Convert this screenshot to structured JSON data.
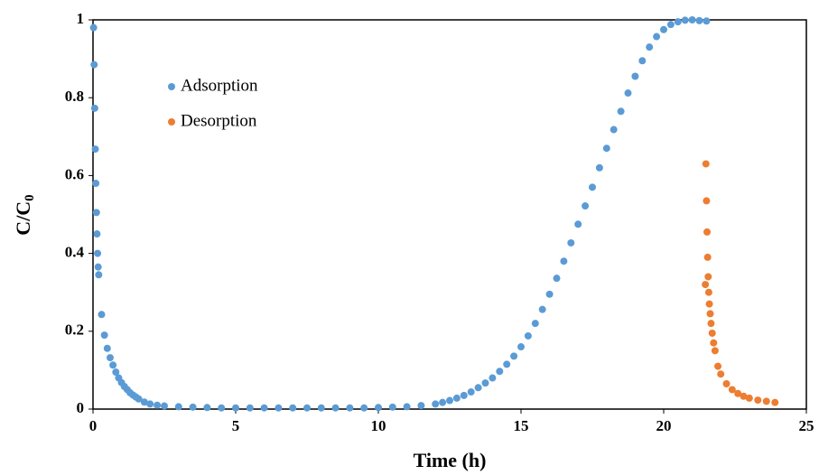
{
  "chart_data": {
    "type": "scatter",
    "x_label": "Time (h)",
    "y_label": "C/C",
    "y_label_sub": "0",
    "xlim": [
      0,
      25
    ],
    "xticks": [
      0,
      5,
      10,
      15,
      20,
      25
    ],
    "ylim": [
      0,
      1
    ],
    "yticks": [
      0,
      0.2,
      0.4,
      0.6,
      0.8,
      1
    ],
    "legend": "upper left",
    "series": [
      {
        "name": "Adsorption",
        "color": "#5b9bd5",
        "x": [
          0.02,
          0.04,
          0.06,
          0.08,
          0.1,
          0.12,
          0.14,
          0.16,
          0.18,
          0.2,
          0.3,
          0.4,
          0.5,
          0.6,
          0.7,
          0.8,
          0.9,
          1.0,
          1.1,
          1.2,
          1.3,
          1.4,
          1.5,
          1.6,
          1.8,
          2.0,
          2.25,
          2.5,
          3,
          3.5,
          4,
          4.5,
          5,
          5.5,
          6,
          6.5,
          7,
          7.5,
          8,
          8.5,
          9,
          9.5,
          10,
          10.5,
          11,
          11.5,
          12,
          12.25,
          12.5,
          12.75,
          13,
          13.25,
          13.5,
          13.75,
          14,
          14.25,
          14.5,
          14.75,
          15,
          15.25,
          15.5,
          15.75,
          16,
          16.25,
          16.5,
          16.75,
          17,
          17.25,
          17.5,
          17.75,
          18,
          18.25,
          18.5,
          18.75,
          19,
          19.25,
          19.5,
          19.75,
          20,
          20.25,
          20.5,
          20.75,
          21,
          21.25,
          21.5
        ],
        "values": [
          0.98,
          0.885,
          0.773,
          0.668,
          0.58,
          0.505,
          0.45,
          0.4,
          0.365,
          0.345,
          0.243,
          0.19,
          0.156,
          0.132,
          0.113,
          0.095,
          0.08,
          0.068,
          0.058,
          0.05,
          0.042,
          0.036,
          0.031,
          0.026,
          0.018,
          0.013,
          0.01,
          0.008,
          0.006,
          0.005,
          0.004,
          0.003,
          0.003,
          0.003,
          0.003,
          0.003,
          0.003,
          0.003,
          0.003,
          0.003,
          0.003,
          0.003,
          0.004,
          0.005,
          0.006,
          0.009,
          0.013,
          0.017,
          0.022,
          0.028,
          0.035,
          0.044,
          0.055,
          0.067,
          0.08,
          0.097,
          0.115,
          0.136,
          0.16,
          0.188,
          0.22,
          0.256,
          0.295,
          0.336,
          0.38,
          0.427,
          0.475,
          0.522,
          0.57,
          0.62,
          0.67,
          0.718,
          0.765,
          0.812,
          0.855,
          0.895,
          0.93,
          0.957,
          0.975,
          0.988,
          0.995,
          0.999,
          1.0,
          0.998,
          0.997
        ]
      },
      {
        "name": "Desorption",
        "color": "#ed7d31",
        "x": [
          21.46,
          21.48,
          21.5,
          21.52,
          21.54,
          21.56,
          21.58,
          21.6,
          21.63,
          21.66,
          21.7,
          21.75,
          21.8,
          21.9,
          22.0,
          22.2,
          22.4,
          22.6,
          22.8,
          23.0,
          23.3,
          23.6,
          23.9
        ],
        "values": [
          0.32,
          0.63,
          0.535,
          0.455,
          0.39,
          0.34,
          0.3,
          0.27,
          0.245,
          0.22,
          0.195,
          0.17,
          0.15,
          0.11,
          0.09,
          0.065,
          0.05,
          0.04,
          0.033,
          0.028,
          0.023,
          0.02,
          0.017
        ]
      }
    ]
  }
}
